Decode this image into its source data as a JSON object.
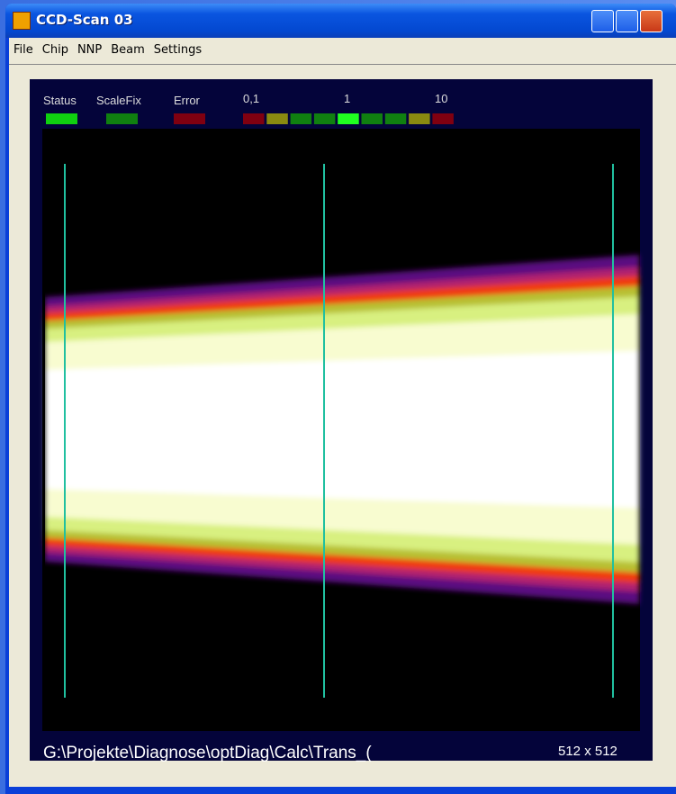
{
  "window": {
    "title": "CCD-Scan 03"
  },
  "menu": [
    "File",
    "Chip",
    "NNP",
    "Beam",
    "Settings"
  ],
  "indicators": [
    "Status",
    "ScaleFix",
    "Error"
  ],
  "scale_labels": [
    "0,1",
    "1",
    "10"
  ],
  "footer": {
    "path": "G:\\Projekte\\Diagnose\\optDiag\\Calc\\Trans_(",
    "size": "512 x 512"
  }
}
